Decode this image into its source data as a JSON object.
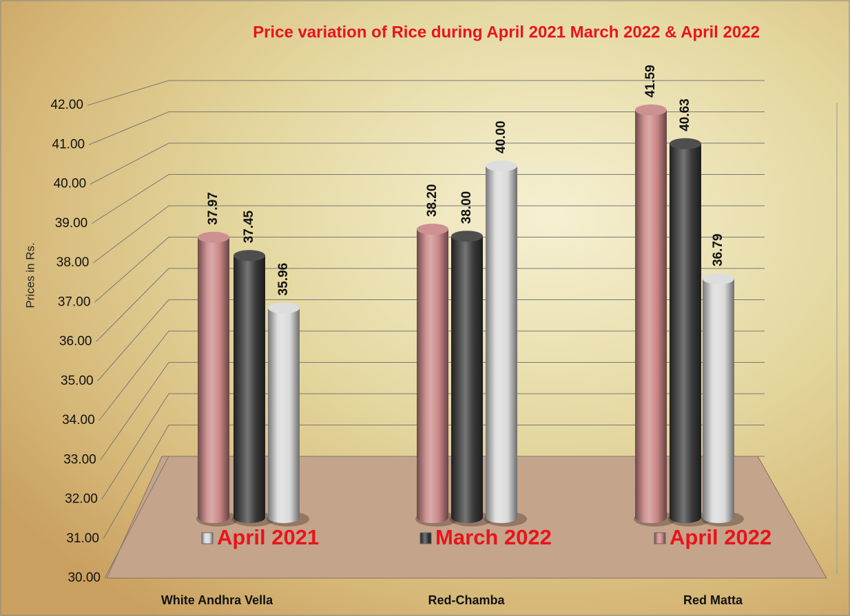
{
  "chart_data": {
    "type": "bar",
    "title": "Price variation of Rice during  April 2021  March 2022  &  April 2022",
    "y_label": "Prices in Rs.",
    "categories": [
      "White Andhra Vella",
      "Red-Chamba",
      "Red Matta"
    ],
    "series": [
      {
        "name": "April 2021",
        "color": "#d9d9d9",
        "values": [
          35.96,
          40.0,
          36.79
        ],
        "value_labels": [
          "35.96",
          "40.00",
          "36.79"
        ]
      },
      {
        "name": "March 2022",
        "color": "#3a3a3a",
        "values": [
          37.45,
          38.0,
          40.63
        ],
        "value_labels": [
          "37.45",
          "38.00",
          "40.63"
        ]
      },
      {
        "name": "April 2022",
        "color": "#c98585",
        "values": [
          37.97,
          38.2,
          41.59
        ],
        "value_labels": [
          "37.97",
          "38.20",
          "41.59"
        ]
      }
    ],
    "ylim": [
      30,
      42
    ],
    "yticks": [
      {
        "value": 30,
        "label": "30.00"
      },
      {
        "value": 31,
        "label": "31.00"
      },
      {
        "value": 32,
        "label": "32.00"
      },
      {
        "value": 33,
        "label": "33.00"
      },
      {
        "value": 34,
        "label": "34.00"
      },
      {
        "value": 35,
        "label": "35.00"
      },
      {
        "value": 36,
        "label": "36.00"
      },
      {
        "value": 37,
        "label": "37.00"
      },
      {
        "value": 38,
        "label": "38.00"
      },
      {
        "value": 39,
        "label": "39.00"
      },
      {
        "value": 40,
        "label": "40.00"
      },
      {
        "value": 41,
        "label": "41.00"
      },
      {
        "value": 42,
        "label": "42.00"
      }
    ],
    "grid": true
  }
}
